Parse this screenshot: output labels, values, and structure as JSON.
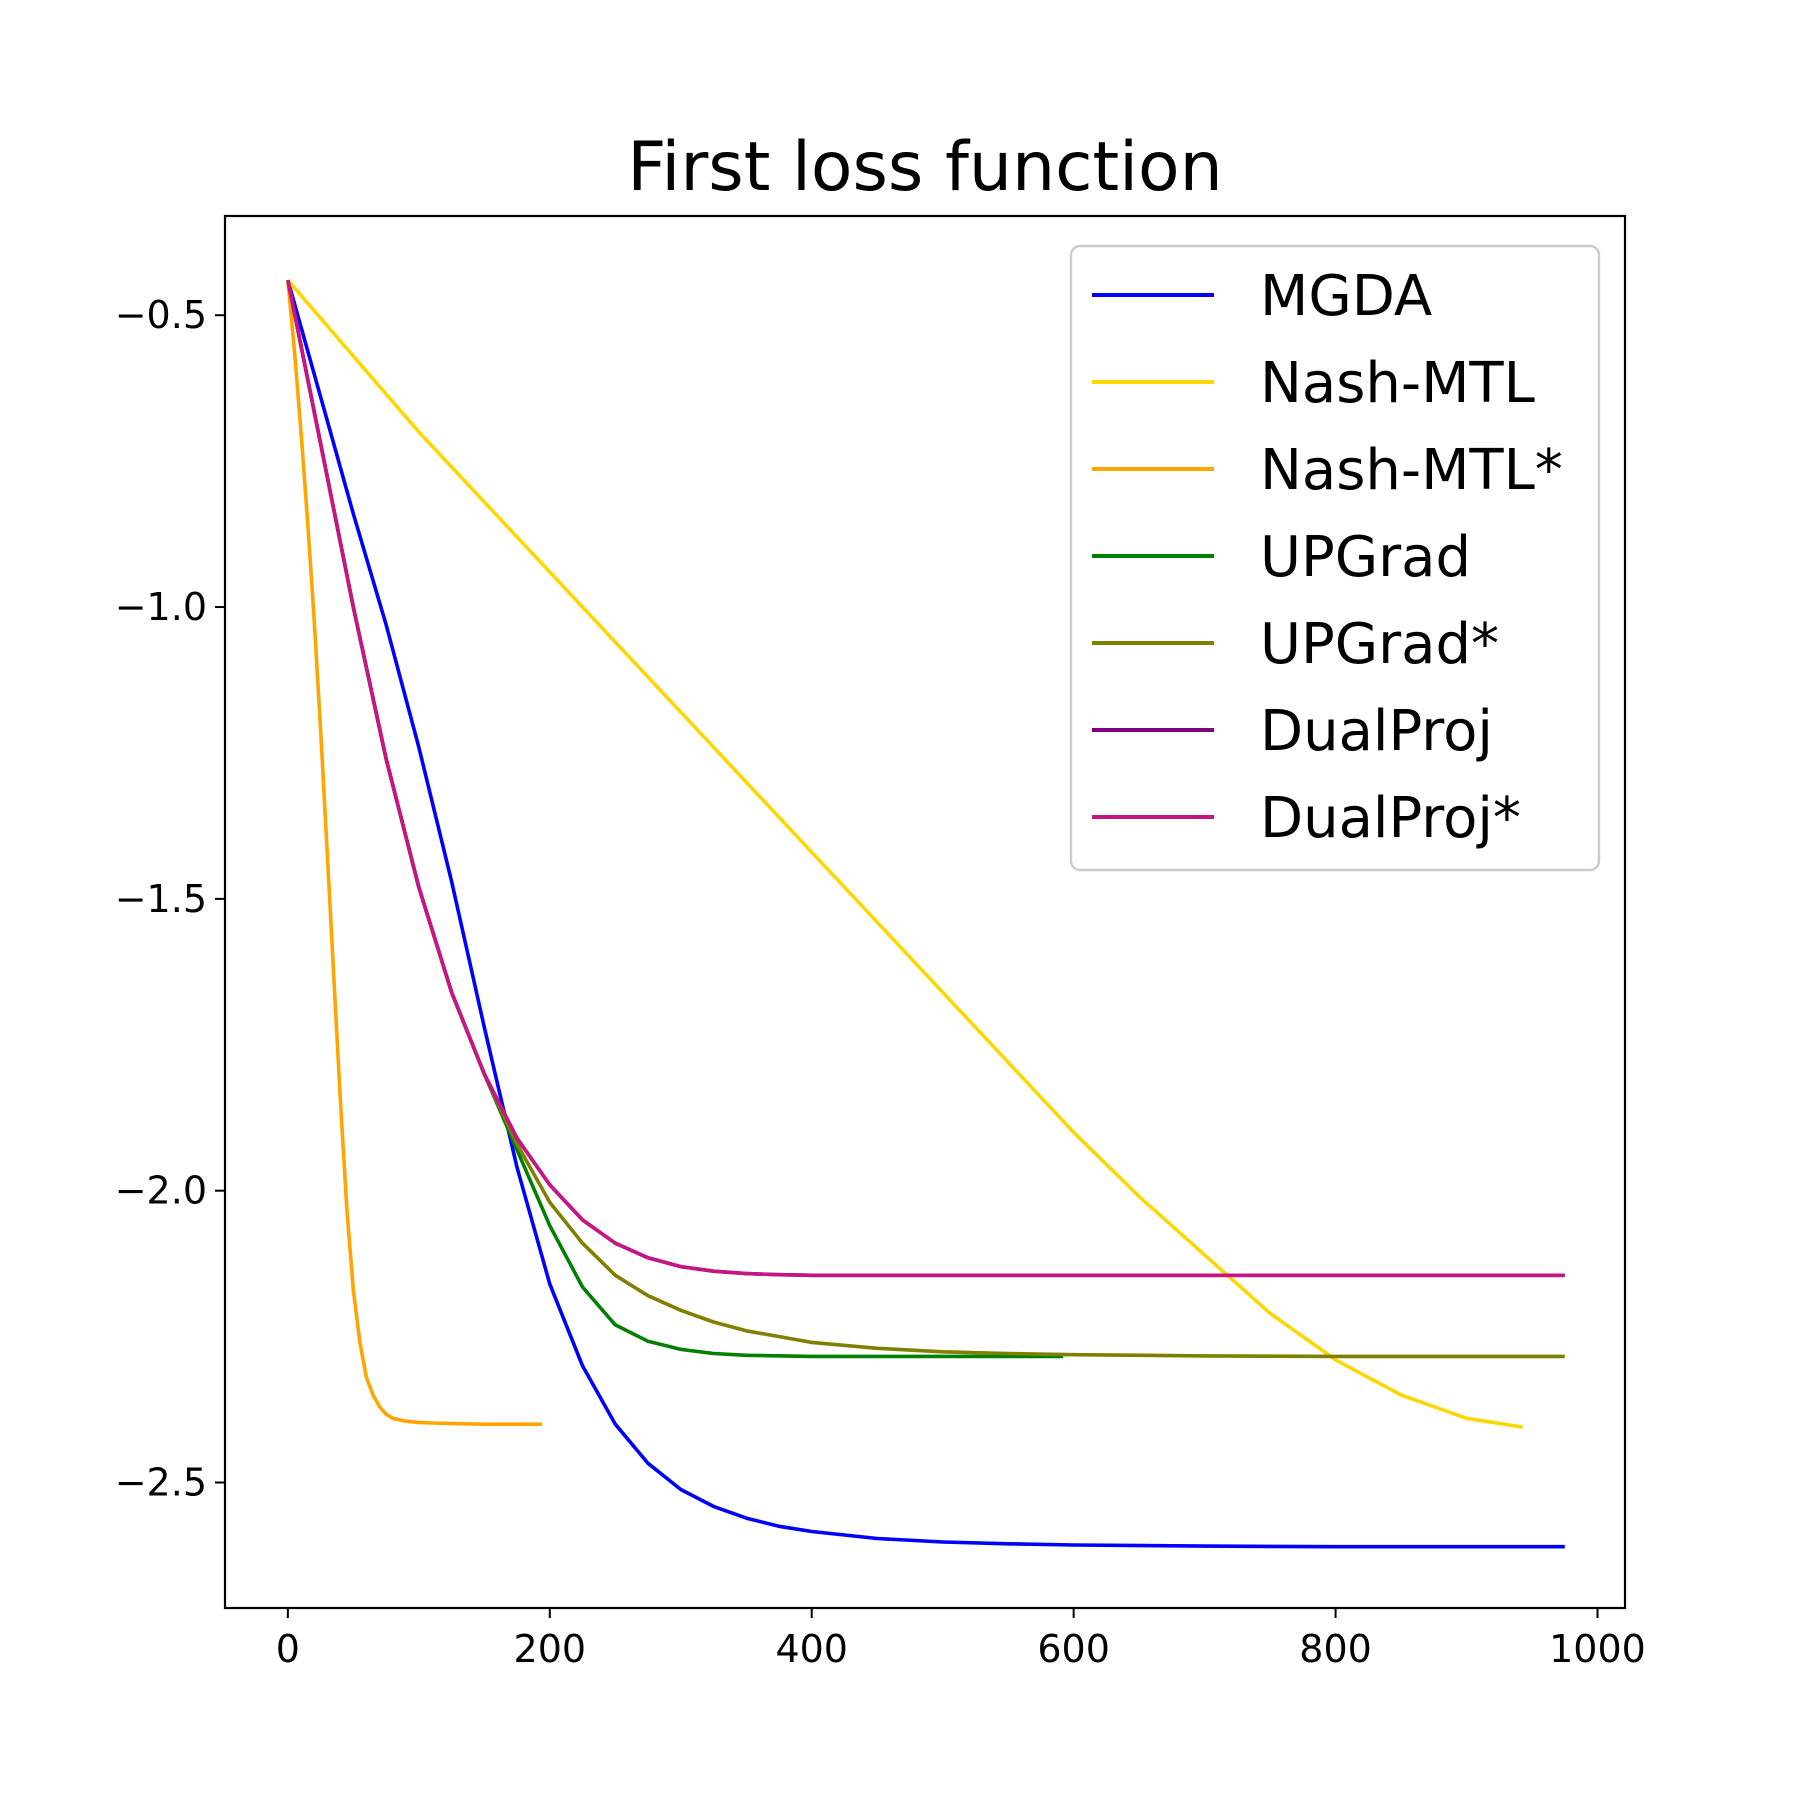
{
  "chart_data": {
    "type": "line",
    "title": "First loss function",
    "xlabel": "",
    "ylabel": "",
    "xlim": [
      -48,
      1021
    ],
    "ylim": [
      -2.715,
      -0.33
    ],
    "xticks": [
      0,
      200,
      400,
      600,
      800,
      1000
    ],
    "yticks": [
      -0.5,
      -1.0,
      -1.5,
      -2.0,
      -2.5
    ],
    "xtick_labels": [
      "0",
      "200",
      "400",
      "600",
      "800",
      "1000"
    ],
    "ytick_labels": [
      "−0.5",
      "−1.0",
      "−1.5",
      "−2.0",
      "−2.5"
    ],
    "grid": false,
    "legend_position": "top-right",
    "series": [
      {
        "name": "MGDA",
        "color": "#0000ff",
        "x": [
          0,
          25,
          50,
          75,
          100,
          125,
          150,
          175,
          200,
          225,
          250,
          275,
          300,
          325,
          350,
          375,
          400,
          450,
          500,
          550,
          600,
          700,
          800,
          900,
          975
        ],
        "y": [
          -0.44,
          -0.64,
          -0.84,
          -1.03,
          -1.24,
          -1.47,
          -1.72,
          -1.96,
          -2.16,
          -2.3,
          -2.4,
          -2.467,
          -2.512,
          -2.541,
          -2.561,
          -2.575,
          -2.584,
          -2.596,
          -2.602,
          -2.605,
          -2.607,
          -2.609,
          -2.61,
          -2.61,
          -2.61
        ]
      },
      {
        "name": "Nash-MTL",
        "color": "#ffd700",
        "x": [
          0,
          50,
          100,
          150,
          200,
          250,
          300,
          350,
          400,
          450,
          500,
          550,
          600,
          650,
          700,
          750,
          800,
          850,
          900,
          943
        ],
        "y": [
          -0.44,
          -0.57,
          -0.7,
          -0.82,
          -0.94,
          -1.06,
          -1.18,
          -1.3,
          -1.42,
          -1.54,
          -1.66,
          -1.78,
          -1.9,
          -2.01,
          -2.11,
          -2.21,
          -2.29,
          -2.35,
          -2.39,
          -2.405
        ]
      },
      {
        "name": "Nash-MTL*",
        "color": "#ffa500",
        "x": [
          0,
          5,
          10,
          15,
          20,
          25,
          30,
          35,
          40,
          45,
          50,
          55,
          60,
          65,
          70,
          75,
          80,
          90,
          100,
          110,
          125,
          150,
          175,
          194
        ],
        "y": [
          -0.44,
          -0.56,
          -0.7,
          -0.85,
          -1.02,
          -1.21,
          -1.42,
          -1.63,
          -1.84,
          -2.03,
          -2.17,
          -2.26,
          -2.32,
          -2.35,
          -2.37,
          -2.383,
          -2.39,
          -2.395,
          -2.397,
          -2.398,
          -2.399,
          -2.4,
          -2.4,
          -2.4
        ]
      },
      {
        "name": "UPGrad",
        "color": "#008000",
        "x": [
          0,
          25,
          50,
          75,
          100,
          125,
          150,
          175,
          200,
          225,
          250,
          275,
          300,
          325,
          350,
          400,
          450,
          500,
          592
        ],
        "y": [
          -0.44,
          -0.72,
          -1.0,
          -1.26,
          -1.48,
          -1.66,
          -1.8,
          -1.93,
          -2.06,
          -2.165,
          -2.23,
          -2.258,
          -2.272,
          -2.279,
          -2.282,
          -2.284,
          -2.284,
          -2.284,
          -2.284
        ]
      },
      {
        "name": "UPGrad*",
        "color": "#808000",
        "x": [
          0,
          25,
          50,
          75,
          100,
          125,
          150,
          175,
          200,
          225,
          250,
          275,
          300,
          325,
          350,
          400,
          450,
          500,
          550,
          600,
          700,
          800,
          900,
          975
        ],
        "y": [
          -0.44,
          -0.72,
          -1.0,
          -1.26,
          -1.48,
          -1.66,
          -1.8,
          -1.92,
          -2.02,
          -2.09,
          -2.145,
          -2.18,
          -2.205,
          -2.225,
          -2.24,
          -2.26,
          -2.27,
          -2.276,
          -2.279,
          -2.281,
          -2.283,
          -2.284,
          -2.284,
          -2.284
        ]
      },
      {
        "name": "DualProj",
        "color": "#800080",
        "x": [
          0,
          25,
          50,
          75,
          100,
          125,
          150,
          175,
          200,
          225,
          250,
          275,
          300,
          325,
          350,
          375,
          400,
          500,
          600,
          700,
          800,
          900,
          975
        ],
        "y": [
          -0.44,
          -0.72,
          -1.0,
          -1.26,
          -1.48,
          -1.66,
          -1.8,
          -1.91,
          -1.99,
          -2.05,
          -2.09,
          -2.115,
          -2.13,
          -2.138,
          -2.142,
          -2.144,
          -2.145,
          -2.145,
          -2.145,
          -2.145,
          -2.145,
          -2.145,
          -2.145
        ]
      },
      {
        "name": "DualProj*",
        "color": "#c71585",
        "x": [
          0,
          25,
          50,
          75,
          100,
          125,
          150,
          175,
          200,
          225,
          250,
          275,
          300,
          325,
          350,
          375,
          400,
          500,
          600,
          700,
          800,
          900,
          975
        ],
        "y": [
          -0.44,
          -0.72,
          -1.0,
          -1.26,
          -1.48,
          -1.66,
          -1.8,
          -1.91,
          -1.99,
          -2.05,
          -2.09,
          -2.115,
          -2.13,
          -2.138,
          -2.142,
          -2.144,
          -2.145,
          -2.145,
          -2.145,
          -2.145,
          -2.145,
          -2.145,
          -2.145
        ]
      }
    ]
  }
}
